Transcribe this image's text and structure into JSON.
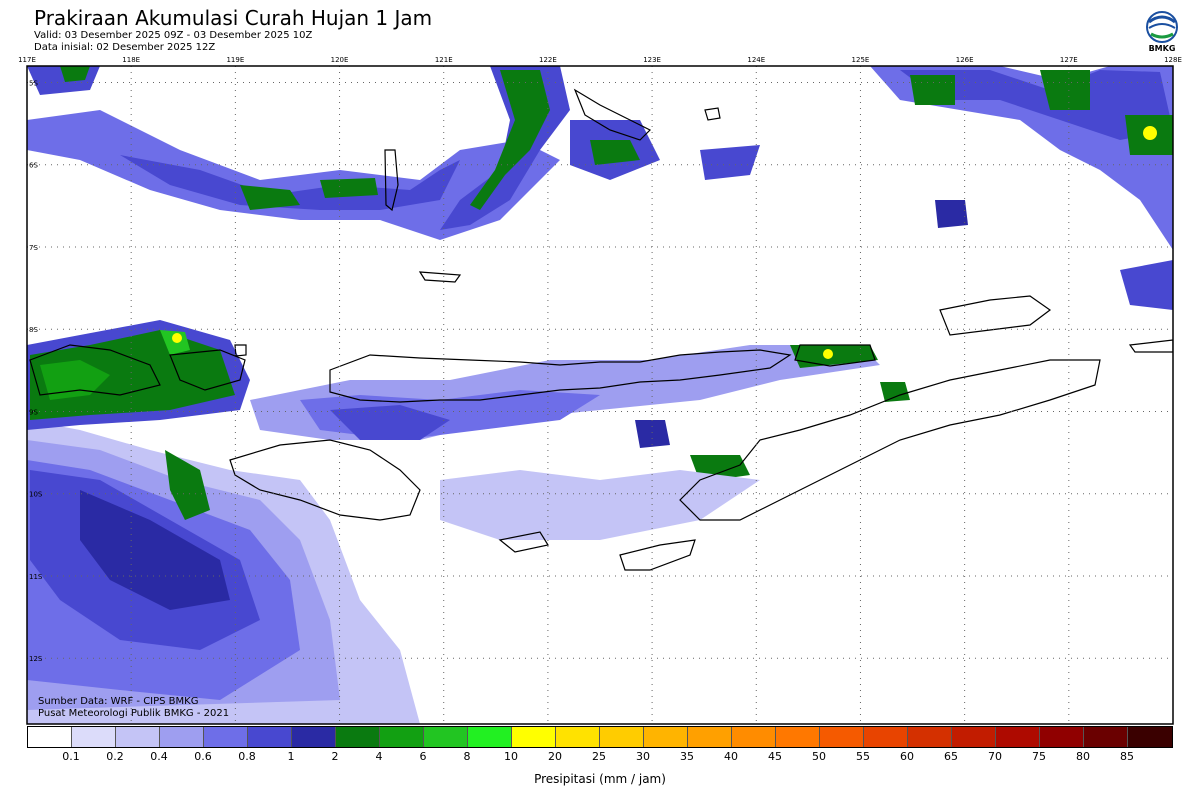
{
  "header": {
    "title": "Prakiraan Akumulasi Curah Hujan 1 Jam",
    "valid": "Valid: 03 Desember 2025 09Z - 03 Desember 2025 10Z",
    "init": "Data inisial: 02 Desember 2025 12Z"
  },
  "logo": {
    "text": "BMKG",
    "icon": "bmkg-logo-icon"
  },
  "map": {
    "lon_labels": [
      "117E",
      "118E",
      "119E",
      "120E",
      "121E",
      "122E",
      "123E",
      "124E",
      "125E",
      "126E",
      "127E",
      "128E"
    ],
    "lat_labels": [
      "5S",
      "6S",
      "7S",
      "8S",
      "9S",
      "10S",
      "11S",
      "12S"
    ],
    "lon_range": [
      117,
      128
    ],
    "lat_range": [
      -4.8,
      -12.8
    ]
  },
  "credits": {
    "source": "Sumber Data: WRF - CIPS BMKG",
    "org": "Pusat Meteorologi Publik BMKG - 2021"
  },
  "legend": {
    "ticks": [
      "0.1",
      "0.2",
      "0.4",
      "0.6",
      "0.8",
      "1",
      "2",
      "4",
      "6",
      "8",
      "10",
      "20",
      "25",
      "30",
      "35",
      "40",
      "45",
      "50",
      "55",
      "60",
      "65",
      "70",
      "75",
      "80",
      "85"
    ],
    "colors": [
      "#ffffff",
      "#dcdcfa",
      "#c4c4f6",
      "#9e9ef0",
      "#6e6ee8",
      "#4848d0",
      "#2a2aa4",
      "#0a7a10",
      "#12a012",
      "#22c522",
      "#22f022",
      "#ffff00",
      "#ffe200",
      "#ffcc00",
      "#ffb400",
      "#ffa000",
      "#ff8c00",
      "#ff7800",
      "#f55a00",
      "#e84400",
      "#d43000",
      "#c21c00",
      "#ae0a00",
      "#900000",
      "#6a0000",
      "#3a0000"
    ],
    "unit": "Presipitasi (mm / jam)"
  }
}
